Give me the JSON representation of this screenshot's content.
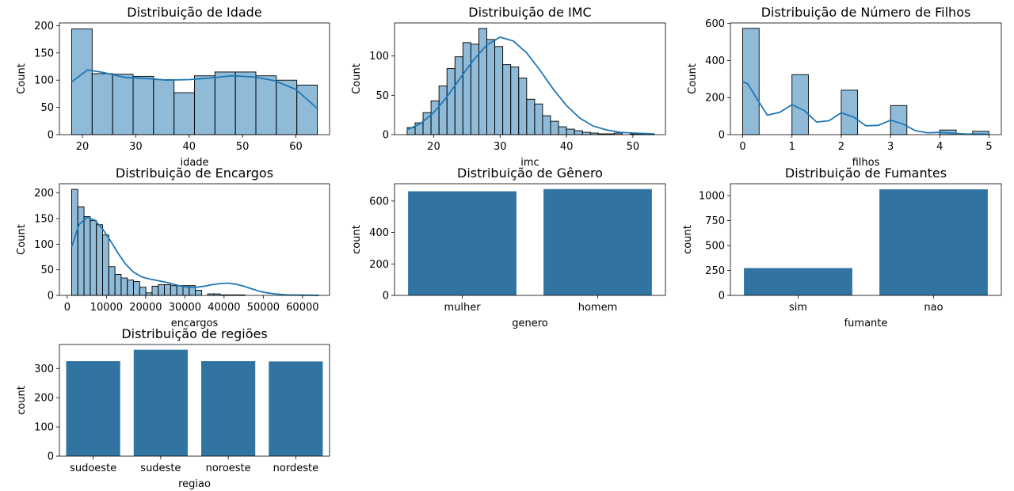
{
  "chart_data": [
    {
      "type": "histogram",
      "title": "Distribuição de Idade",
      "xlabel": "idade",
      "ylabel": "Count",
      "xlim": [
        15.7,
        66.3
      ],
      "ylim": [
        0,
        205
      ],
      "xticks": [
        20,
        30,
        40,
        50,
        60
      ],
      "yticks": [
        0,
        50,
        100,
        150,
        200
      ],
      "bin_edges": [
        18,
        21.83,
        25.67,
        29.5,
        33.33,
        37.17,
        41,
        44.83,
        48.67,
        52.5,
        56.33,
        60.17,
        64
      ],
      "counts": [
        194,
        112,
        111,
        107,
        101,
        77,
        108,
        115,
        115,
        108,
        100,
        91
      ],
      "kde": {
        "x": [
          18,
          21,
          24,
          28,
          32,
          36,
          40,
          44,
          48,
          52,
          56,
          60,
          64
        ],
        "y": [
          97,
          119,
          114,
          105,
          103,
          100,
          101,
          104,
          108,
          106,
          99,
          83,
          48
        ]
      },
      "color": "#1f77b4"
    },
    {
      "type": "histogram",
      "title": "Distribuição de IMC",
      "xlabel": "imc",
      "ylabel": "Count",
      "xlim": [
        14.1,
        54.9
      ],
      "ylim": [
        0,
        142
      ],
      "xticks": [
        20,
        30,
        40,
        50
      ],
      "yticks": [
        0,
        50,
        100
      ],
      "bin_edges": [
        16.0,
        17.2,
        18.4,
        19.6,
        20.8,
        22.0,
        23.2,
        24.4,
        25.6,
        26.8,
        28.0,
        29.2,
        30.4,
        31.6,
        32.8,
        34.0,
        35.2,
        36.4,
        37.6,
        38.8,
        40.0,
        41.2,
        42.4,
        43.6,
        44.8,
        46.0,
        47.2,
        48.4,
        49.6,
        50.8,
        52.0,
        53.2
      ],
      "counts": [
        9,
        15,
        28,
        43,
        62,
        84,
        99,
        117,
        115,
        135,
        121,
        112,
        89,
        86,
        72,
        45,
        39,
        24,
        17,
        10,
        7,
        5,
        3,
        2,
        1,
        1,
        2,
        0,
        1,
        1,
        1
      ],
      "kde": {
        "x": [
          16,
          18,
          20,
          22,
          24,
          26,
          28,
          30,
          32,
          34,
          36,
          38,
          40,
          42,
          44,
          46,
          48,
          50,
          53
        ],
        "y": [
          6,
          14,
          28,
          48,
          72,
          95,
          114,
          124,
          119,
          104,
          82,
          58,
          37,
          21,
          11,
          6,
          3,
          2,
          1
        ]
      },
      "color": "#1f77b4"
    },
    {
      "type": "histogram",
      "title": "Distribuição de Número de Filhos",
      "xlabel": "filhos",
      "ylabel": "Count",
      "xlim": [
        -0.25,
        5.25
      ],
      "ylim": [
        0,
        603
      ],
      "xticks": [
        0,
        1,
        2,
        3,
        4,
        5
      ],
      "yticks": [
        0,
        200,
        400,
        600
      ],
      "bin_edges": [
        0,
        0.333,
        0.667,
        1.0,
        1.333,
        1.667,
        2.0,
        2.333,
        2.667,
        3.0,
        3.333,
        3.667,
        4.0,
        4.333,
        4.667,
        5.0
      ],
      "counts": [
        574,
        0,
        0,
        324,
        0,
        0,
        240,
        0,
        0,
        157,
        0,
        0,
        25,
        0,
        18
      ],
      "kde": {
        "x": [
          0,
          0.1,
          0.25,
          0.5,
          0.75,
          1.0,
          1.25,
          1.5,
          1.75,
          2.0,
          2.25,
          2.5,
          2.75,
          3.0,
          3.25,
          3.5,
          3.75,
          4.0,
          4.25,
          4.5,
          4.75,
          5.0
        ],
        "y": [
          285,
          275,
          210,
          105,
          120,
          162,
          130,
          68,
          75,
          118,
          95,
          48,
          50,
          78,
          58,
          22,
          10,
          12,
          8,
          4,
          3,
          2
        ]
      },
      "color": "#1f77b4"
    },
    {
      "type": "histogram",
      "title": "Distribuição de Encargos",
      "xlabel": "encargos",
      "ylabel": "Count",
      "xlim": [
        -2000,
        66900
      ],
      "ylim": [
        0,
        218
      ],
      "xticks": [
        0,
        10000,
        20000,
        30000,
        40000,
        50000,
        60000
      ],
      "yticks": [
        0,
        50,
        100,
        150,
        200
      ],
      "bin_edges": [
        1122,
        2700,
        4277,
        5855,
        7432,
        9010,
        10587,
        12165,
        13742,
        15320,
        16897,
        18475,
        20052,
        21630,
        23207,
        24785,
        26362,
        27940,
        29517,
        31095,
        32672,
        34250,
        35827,
        37405,
        38982,
        40560,
        42137,
        43715,
        45292,
        46870,
        48447,
        50025,
        51602,
        53180,
        54757,
        56335,
        57912,
        59490,
        61067,
        62645,
        64222
      ],
      "counts": [
        207,
        173,
        154,
        146,
        138,
        118,
        56,
        41,
        34,
        30,
        27,
        16,
        5,
        18,
        21,
        21,
        19,
        19,
        19,
        19,
        10,
        0,
        3,
        3,
        1,
        1,
        1,
        1,
        0,
        0,
        0,
        0,
        0,
        0,
        0,
        0,
        0,
        0,
        0,
        0
      ],
      "kde": {
        "x": [
          1122,
          3000,
          5000,
          7000,
          9000,
          11000,
          13000,
          15000,
          17000,
          19000,
          21000,
          23000,
          25000,
          27000,
          29000,
          31000,
          33000,
          35000,
          37000,
          39000,
          41000,
          43000,
          45000,
          47000,
          49000,
          51000,
          53000,
          56000,
          60000,
          64222
        ],
        "y": [
          95,
          138,
          152,
          147,
          130,
          107,
          82,
          60,
          45,
          36,
          32,
          29,
          26,
          22,
          18,
          16,
          16,
          18,
          21,
          23,
          24,
          22,
          18,
          13,
          8,
          5,
          3,
          1,
          0.5,
          0.2
        ]
      },
      "color": "#1f77b4"
    },
    {
      "type": "bar",
      "title": "Distribuição de Gênero",
      "xlabel": "genero",
      "ylabel": "count",
      "ylim": [
        0,
        710
      ],
      "yticks": [
        0,
        200,
        400,
        600
      ],
      "categories": [
        "mulher",
        "homem"
      ],
      "values": [
        662,
        676
      ],
      "color": "#3274a1"
    },
    {
      "type": "bar",
      "title": "Distribuição de Fumantes",
      "xlabel": "fumante",
      "ylabel": "count",
      "ylim": [
        0,
        1120
      ],
      "yticks": [
        0,
        250,
        500,
        750,
        1000
      ],
      "categories": [
        "sim",
        "nao"
      ],
      "values": [
        274,
        1064
      ],
      "color": "#3274a1"
    },
    {
      "type": "bar",
      "title": "Distribuição de regiões",
      "xlabel": "regiao",
      "ylabel": "count",
      "ylim": [
        0,
        382
      ],
      "yticks": [
        0,
        100,
        200,
        300
      ],
      "categories": [
        "sudoeste",
        "sudeste",
        "noroeste",
        "nordeste"
      ],
      "values": [
        325,
        364,
        325,
        324
      ],
      "color": "#3274a1"
    }
  ]
}
